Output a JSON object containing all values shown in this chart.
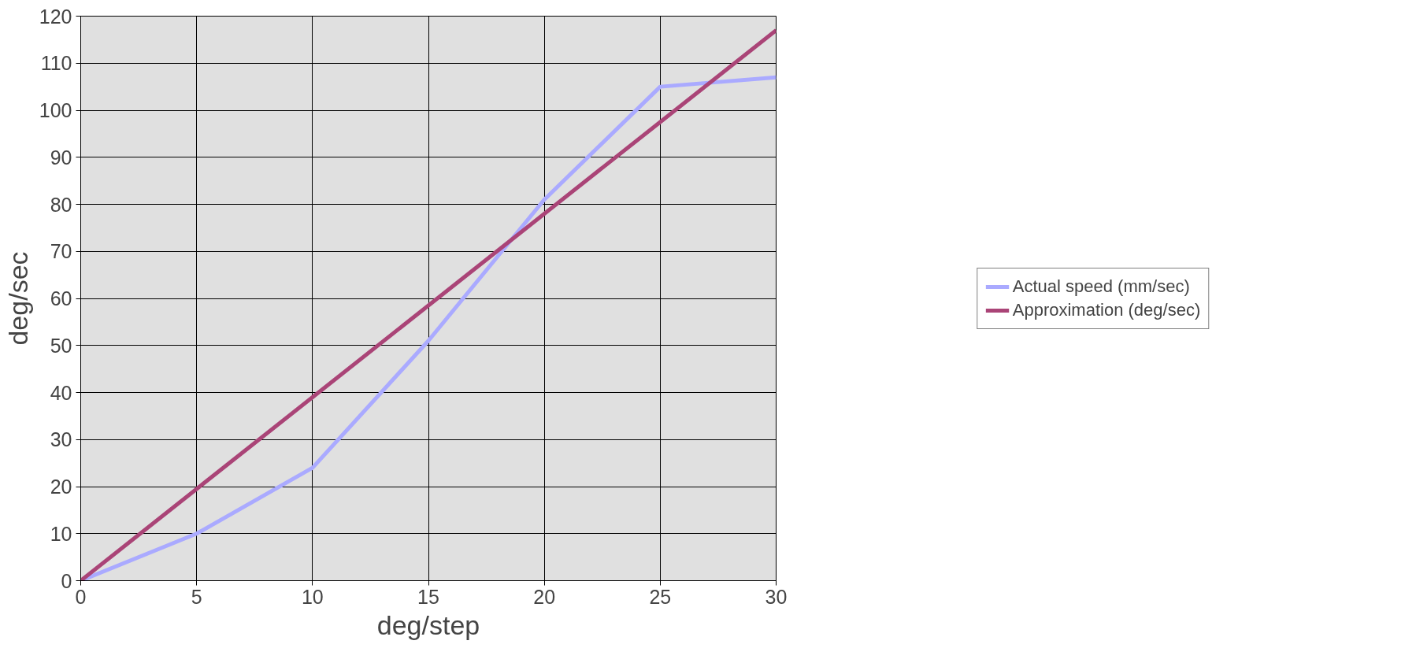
{
  "chart_data": {
    "type": "line",
    "xlabel": "deg/step",
    "ylabel": "deg/sec",
    "x": [
      0,
      5,
      10,
      15,
      20,
      25,
      30
    ],
    "series": [
      {
        "name": "Actual speed (mm/sec)",
        "color": "#aaaaff",
        "values": [
          0,
          10,
          24,
          51,
          81,
          105,
          107
        ]
      },
      {
        "name": "Approximation (deg/sec)",
        "color": "#aa4477",
        "values": [
          0,
          19.5,
          39,
          58.5,
          78,
          97.5,
          117
        ]
      }
    ],
    "xlim": [
      0,
      30
    ],
    "ylim": [
      0,
      120
    ],
    "xticks": [
      0,
      5,
      10,
      15,
      20,
      25,
      30
    ],
    "yticks": [
      0,
      10,
      20,
      30,
      40,
      50,
      60,
      70,
      80,
      90,
      100,
      110,
      120
    ],
    "grid": true,
    "legend": "right"
  }
}
